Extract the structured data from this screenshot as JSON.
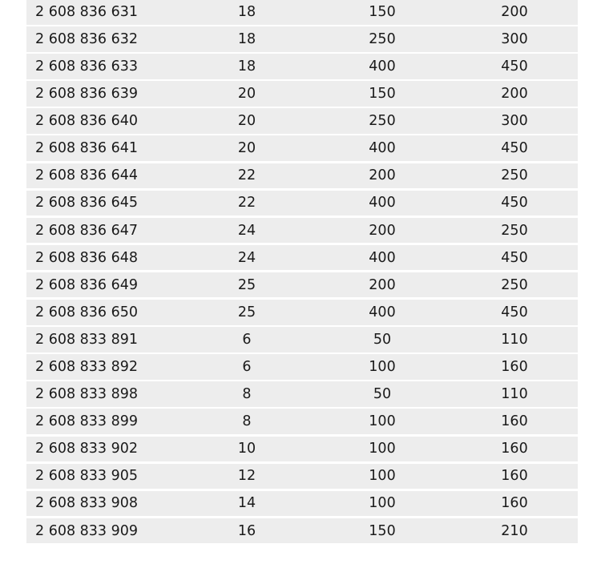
{
  "rows": [
    [
      "2 608 836 631",
      "18",
      "150",
      "200"
    ],
    [
      "2 608 836 632",
      "18",
      "250",
      "300"
    ],
    [
      "2 608 836 633",
      "18",
      "400",
      "450"
    ],
    [
      "2 608 836 639",
      "20",
      "150",
      "200"
    ],
    [
      "2 608 836 640",
      "20",
      "250",
      "300"
    ],
    [
      "2 608 836 641",
      "20",
      "400",
      "450"
    ],
    [
      "2 608 836 644",
      "22",
      "200",
      "250"
    ],
    [
      "2 608 836 645",
      "22",
      "400",
      "450"
    ],
    [
      "2 608 836 647",
      "24",
      "200",
      "250"
    ],
    [
      "2 608 836 648",
      "24",
      "400",
      "450"
    ],
    [
      "2 608 836 649",
      "25",
      "200",
      "250"
    ],
    [
      "2 608 836 650",
      "25",
      "400",
      "450"
    ],
    [
      "2 608 833 891",
      "6",
      "50",
      "110"
    ],
    [
      "2 608 833 892",
      "6",
      "100",
      "160"
    ],
    [
      "2 608 833 898",
      "8",
      "50",
      "110"
    ],
    [
      "2 608 833 899",
      "8",
      "100",
      "160"
    ],
    [
      "2 608 833 902",
      "10",
      "100",
      "160"
    ],
    [
      "2 608 833 905",
      "12",
      "100",
      "160"
    ],
    [
      "2 608 833 908",
      "14",
      "100",
      "160"
    ],
    [
      "2 608 833 909",
      "16",
      "150",
      "210"
    ]
  ]
}
